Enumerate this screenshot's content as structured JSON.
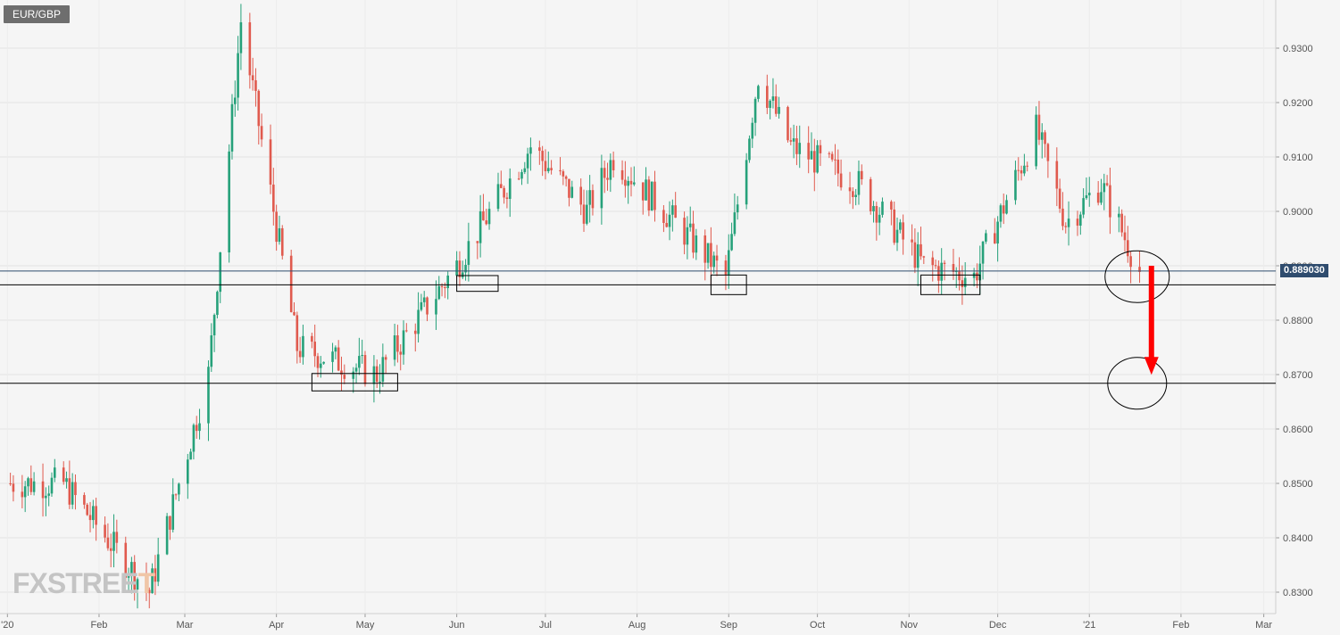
{
  "header": {
    "symbol": "EUR/GBP"
  },
  "watermark": {
    "text_main": "FXSTREE",
    "text_accent": "T"
  },
  "current_price": {
    "value": 0.88903,
    "label": "0.889030",
    "badge_color": "#2f4c6e"
  },
  "colors": {
    "up": "#26a17a",
    "down": "#e05a4e",
    "accent": "#ff0000",
    "grid": "#e4e4e4",
    "annotation": "#000000"
  },
  "chart_data": {
    "type": "candlestick",
    "title": "EUR/GBP",
    "timeframe": "daily",
    "x_labels": [
      "'20",
      "Feb",
      "Mar",
      "Apr",
      "May",
      "Jun",
      "Jul",
      "Aug",
      "Sep",
      "Oct",
      "Nov",
      "Dec",
      "'21",
      "Feb",
      "Mar"
    ],
    "y_ticks": [
      "0.9300",
      "0.9200",
      "0.9100",
      "0.9000",
      "0.8900",
      "0.8800",
      "0.8700",
      "0.8600",
      "0.8500",
      "0.8400",
      "0.8300"
    ],
    "ylim": [
      0.827,
      0.939
    ],
    "horizontal_levels": [
      0.8865,
      0.8684
    ],
    "support_zones": [
      {
        "from": "2020-04-13",
        "to": "2020-05-12",
        "low": 0.867,
        "high": 0.8702
      },
      {
        "from": "2020-06-01",
        "to": "2020-06-15",
        "low": 0.8853,
        "high": 0.8882
      },
      {
        "from": "2020-08-26",
        "to": "2020-09-07",
        "low": 0.8847,
        "high": 0.8883
      },
      {
        "from": "2020-11-05",
        "to": "2020-11-25",
        "low": 0.8847,
        "high": 0.8883
      }
    ],
    "projection": {
      "from": 0.89,
      "to": 0.868,
      "start_date": "2021-01-19",
      "end_date": "2021-01-22"
    },
    "key_points": [
      {
        "date": "2020-01-02",
        "close": 0.85
      },
      {
        "date": "2020-01-20",
        "close": 0.85
      },
      {
        "date": "2020-02-18",
        "close": 0.83
      },
      {
        "date": "2020-03-09",
        "close": 0.87
      },
      {
        "date": "2020-03-20",
        "close": 0.935
      },
      {
        "date": "2020-04-08",
        "close": 0.875
      },
      {
        "date": "2020-05-05",
        "close": 0.87
      },
      {
        "date": "2020-06-01",
        "close": 0.89
      },
      {
        "date": "2020-06-26",
        "close": 0.912
      },
      {
        "date": "2020-07-15",
        "close": 0.9
      },
      {
        "date": "2020-07-24",
        "close": 0.91
      },
      {
        "date": "2020-08-31",
        "close": 0.888
      },
      {
        "date": "2020-09-11",
        "close": 0.925
      },
      {
        "date": "2020-09-22",
        "close": 0.912
      },
      {
        "date": "2020-10-15",
        "close": 0.905
      },
      {
        "date": "2020-11-06",
        "close": 0.89
      },
      {
        "date": "2020-11-23",
        "close": 0.888
      },
      {
        "date": "2020-12-14",
        "close": 0.915
      },
      {
        "date": "2020-12-24",
        "close": 0.898
      },
      {
        "date": "2021-01-05",
        "close": 0.905
      },
      {
        "date": "2021-01-18",
        "close": 0.889
      }
    ]
  }
}
